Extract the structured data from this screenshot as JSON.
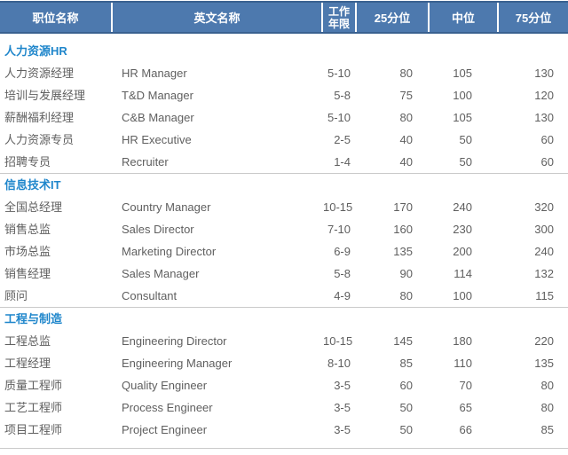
{
  "colors": {
    "header_bg": "#4d79ae",
    "header_border": "#3a6190",
    "header_text": "#ffffff",
    "section_title": "#1f86cb",
    "body_text": "#5f5f5f",
    "divider": "#c9c9c9",
    "page_bg": "#ffffff"
  },
  "chart_data": {
    "type": "table",
    "columns": [
      "职位名称",
      "英文名称",
      "工作年限",
      "25分位",
      "中位",
      "75分位"
    ],
    "sections": [
      {
        "title": "人力资源HR",
        "rows": [
          [
            "人力资源经理",
            "HR Manager",
            "5-10",
            "80",
            "105",
            "130"
          ],
          [
            "培训与发展经理",
            "T&D Manager",
            "5-8",
            "75",
            "100",
            "120"
          ],
          [
            "薪酬福利经理",
            "C&B Manager",
            "5-10",
            "80",
            "105",
            "130"
          ],
          [
            "人力资源专员",
            "HR Executive",
            "2-5",
            "40",
            "50",
            "60"
          ],
          [
            "招聘专员",
            "Recruiter",
            "1-4",
            "40",
            "50",
            "60"
          ]
        ]
      },
      {
        "title": "信息技术IT",
        "rows": [
          [
            "全国总经理",
            "Country Manager",
            "10-15",
            "170",
            "240",
            "320"
          ],
          [
            "销售总监",
            "Sales Director",
            "7-10",
            "160",
            "230",
            "300"
          ],
          [
            "市场总监",
            "Marketing Director",
            "6-9",
            "135",
            "200",
            "240"
          ],
          [
            "销售经理",
            "Sales Manager",
            "5-8",
            "90",
            "114",
            "132"
          ],
          [
            "顾问",
            "Consultant",
            "4-9",
            "80",
            "100",
            "115"
          ]
        ]
      },
      {
        "title": "工程与制造",
        "rows": [
          [
            "工程总监",
            "Engineering Director",
            "10-15",
            "145",
            "180",
            "220"
          ],
          [
            "工程经理",
            "Engineering Manager",
            "8-10",
            "85",
            "110",
            "135"
          ],
          [
            "质量工程师",
            "Quality Engineer",
            "3-5",
            "60",
            "70",
            "80"
          ],
          [
            "工艺工程师",
            "Process Engineer",
            "3-5",
            "50",
            "65",
            "80"
          ],
          [
            "项目工程师",
            "Project Engineer",
            "3-5",
            "50",
            "66",
            "85"
          ]
        ]
      }
    ]
  }
}
